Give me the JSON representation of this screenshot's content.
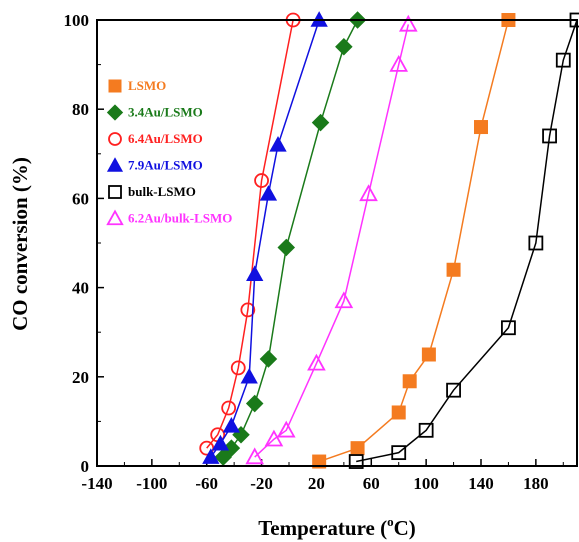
{
  "chart_data": {
    "type": "line",
    "title": "",
    "xlabel": {
      "prefix": "Temperature (",
      "sup": "o",
      "suffix": "C)"
    },
    "ylabel": "CO conversion (%)",
    "xlim": [
      -140,
      210
    ],
    "ylim": [
      0,
      100
    ],
    "xticks": [
      "-140",
      "-100",
      "-60",
      "-20",
      "20",
      "60",
      "100",
      "140",
      "180"
    ],
    "yticks": [
      "0",
      "20",
      "40",
      "60",
      "80",
      "100"
    ],
    "legend_position": "left, upper-middle",
    "series": [
      {
        "name": "LSMO",
        "color": "#f47b20",
        "marker": "square",
        "fill": true,
        "x": [
          22,
          50,
          80,
          88,
          102,
          120,
          140,
          160
        ],
        "y": [
          1,
          4,
          12,
          19,
          25,
          44,
          76,
          100
        ]
      },
      {
        "name": "3.4Au/LSMO",
        "color": "#1a7a1a",
        "marker": "diamond",
        "fill": true,
        "x": [
          -48,
          -42,
          -35,
          -25,
          -15,
          -2,
          23,
          40,
          50
        ],
        "y": [
          2,
          4,
          7,
          14,
          24,
          49,
          77,
          94,
          100
        ]
      },
      {
        "name": "6.4Au/LSMO",
        "color": "#ff2020",
        "marker": "circle",
        "fill": false,
        "x": [
          -60,
          -52,
          -44,
          -37,
          -30,
          -20,
          3
        ],
        "y": [
          4,
          7,
          13,
          22,
          35,
          64,
          100
        ]
      },
      {
        "name": "7.9Au/LSMO",
        "color": "#1010e0",
        "marker": "triangle",
        "fill": true,
        "x": [
          -57,
          -50,
          -42,
          -29,
          -25,
          -15,
          -8,
          22
        ],
        "y": [
          2,
          5,
          9,
          20,
          43,
          61,
          72,
          100
        ]
      },
      {
        "name": "bulk-LSMO",
        "color": "#000000",
        "marker": "square",
        "fill": false,
        "x": [
          49,
          80,
          100,
          120,
          160,
          180,
          190,
          200,
          210
        ],
        "y": [
          1,
          3,
          8,
          17,
          31,
          50,
          74,
          91,
          100
        ]
      },
      {
        "name": "6.2Au/bulk-LSMO",
        "color": "#ff33ff",
        "marker": "triangle",
        "fill": false,
        "x": [
          -25,
          -11,
          -2,
          20,
          40,
          58,
          80,
          87
        ],
        "y": [
          2,
          6,
          8,
          23,
          37,
          61,
          90,
          99
        ]
      }
    ]
  }
}
